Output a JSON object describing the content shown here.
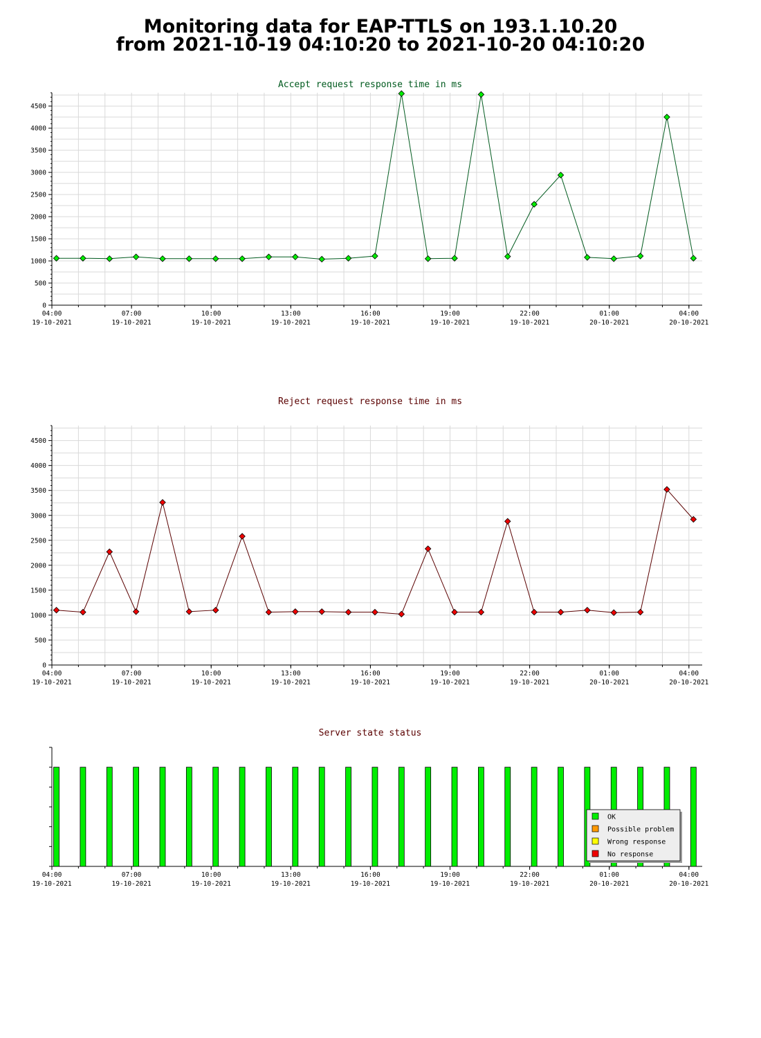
{
  "page": {
    "title_line1": "Monitoring data for EAP-TTLS on 193.1.10.20",
    "title_line2": "from 2021-10-19 04:10:20 to 2021-10-20 04:10:20"
  },
  "chart_data": [
    {
      "type": "line",
      "title": "Accept request response time in ms",
      "title_color": "#005a1e",
      "line_color": "#005a1e",
      "marker_color": "#00ee00",
      "grid": true,
      "ylim": [
        0,
        4800
      ],
      "yticks": [
        0,
        500,
        1000,
        1500,
        2000,
        2500,
        3000,
        3500,
        4000,
        4500
      ],
      "xlim": [
        4.0,
        28.5
      ],
      "xticks": [
        {
          "x": 4,
          "time": "04:00",
          "date": "19-10-2021"
        },
        {
          "x": 7,
          "time": "07:00",
          "date": "19-10-2021"
        },
        {
          "x": 10,
          "time": "10:00",
          "date": "19-10-2021"
        },
        {
          "x": 13,
          "time": "13:00",
          "date": "19-10-2021"
        },
        {
          "x": 16,
          "time": "16:00",
          "date": "19-10-2021"
        },
        {
          "x": 19,
          "time": "19:00",
          "date": "19-10-2021"
        },
        {
          "x": 22,
          "time": "22:00",
          "date": "19-10-2021"
        },
        {
          "x": 25,
          "time": "01:00",
          "date": "20-10-2021"
        },
        {
          "x": 28,
          "time": "04:00",
          "date": "20-10-2021"
        }
      ],
      "series": [
        {
          "x": [
            4.17,
            5.17,
            6.17,
            7.17,
            8.17,
            9.17,
            10.17,
            11.17,
            12.17,
            13.17,
            14.17,
            15.17,
            16.17,
            17.17,
            18.17,
            19.17,
            20.17,
            21.17,
            22.17,
            23.17,
            24.17,
            25.17,
            26.17,
            27.17,
            28.17
          ],
          "values": [
            1060,
            1060,
            1050,
            1090,
            1050,
            1050,
            1050,
            1050,
            1090,
            1090,
            1040,
            1060,
            1110,
            4780,
            1050,
            1060,
            4760,
            1100,
            2280,
            2940,
            1080,
            1050,
            1110,
            4250,
            1060
          ]
        }
      ]
    },
    {
      "type": "line",
      "title": "Reject request response time in ms",
      "title_color": "#5a0000",
      "line_color": "#5a0000",
      "marker_color": "#ee0000",
      "grid": true,
      "ylim": [
        0,
        4800
      ],
      "yticks": [
        0,
        500,
        1000,
        1500,
        2000,
        2500,
        3000,
        3500,
        4000,
        4500
      ],
      "xlim": [
        4.0,
        28.5
      ],
      "xticks": [
        {
          "x": 4,
          "time": "04:00",
          "date": "19-10-2021"
        },
        {
          "x": 7,
          "time": "07:00",
          "date": "19-10-2021"
        },
        {
          "x": 10,
          "time": "10:00",
          "date": "19-10-2021"
        },
        {
          "x": 13,
          "time": "13:00",
          "date": "19-10-2021"
        },
        {
          "x": 16,
          "time": "16:00",
          "date": "19-10-2021"
        },
        {
          "x": 19,
          "time": "19:00",
          "date": "19-10-2021"
        },
        {
          "x": 22,
          "time": "22:00",
          "date": "19-10-2021"
        },
        {
          "x": 25,
          "time": "01:00",
          "date": "20-10-2021"
        },
        {
          "x": 28,
          "time": "04:00",
          "date": "20-10-2021"
        }
      ],
      "series": [
        {
          "x": [
            4.17,
            5.17,
            6.17,
            7.17,
            8.17,
            9.17,
            10.17,
            11.17,
            12.17,
            13.17,
            14.17,
            15.17,
            16.17,
            17.17,
            18.17,
            19.17,
            20.17,
            21.17,
            22.17,
            23.17,
            24.17,
            25.17,
            26.17,
            27.17,
            28.17
          ],
          "values": [
            1100,
            1060,
            2270,
            1070,
            3260,
            1070,
            1100,
            2580,
            1060,
            1070,
            1070,
            1060,
            1060,
            1020,
            2330,
            1060,
            1060,
            2880,
            1060,
            1060,
            1100,
            1050,
            1060,
            3520,
            2920
          ]
        }
      ]
    },
    {
      "type": "bar",
      "title": "Server state status",
      "title_color": "#5a0000",
      "grid": false,
      "xlim": [
        4.0,
        28.5
      ],
      "xticks": [
        {
          "x": 4,
          "time": "04:00",
          "date": "19-10-2021"
        },
        {
          "x": 7,
          "time": "07:00",
          "date": "19-10-2021"
        },
        {
          "x": 10,
          "time": "10:00",
          "date": "19-10-2021"
        },
        {
          "x": 13,
          "time": "13:00",
          "date": "19-10-2021"
        },
        {
          "x": 16,
          "time": "16:00",
          "date": "19-10-2021"
        },
        {
          "x": 19,
          "time": "19:00",
          "date": "19-10-2021"
        },
        {
          "x": 22,
          "time": "22:00",
          "date": "19-10-2021"
        },
        {
          "x": 25,
          "time": "01:00",
          "date": "20-10-2021"
        },
        {
          "x": 28,
          "time": "04:00",
          "date": "20-10-2021"
        }
      ],
      "x": [
        4.17,
        5.17,
        6.17,
        7.17,
        8.17,
        9.17,
        10.17,
        11.17,
        12.17,
        13.17,
        14.17,
        15.17,
        16.17,
        17.17,
        18.17,
        19.17,
        20.17,
        21.17,
        22.17,
        23.17,
        24.17,
        25.17,
        26.17,
        27.17,
        28.17
      ],
      "status": [
        "OK",
        "OK",
        "OK",
        "OK",
        "OK",
        "OK",
        "OK",
        "OK",
        "OK",
        "OK",
        "OK",
        "OK",
        "OK",
        "OK",
        "OK",
        "OK",
        "OK",
        "OK",
        "OK",
        "OK",
        "OK",
        "OK",
        "OK",
        "OK",
        "OK"
      ],
      "legend_position": "bottom-right",
      "legend": [
        {
          "label": "OK",
          "color": "#00ee00"
        },
        {
          "label": "Possible problem",
          "color": "#ff9900"
        },
        {
          "label": "Wrong response",
          "color": "#ffff00"
        },
        {
          "label": "No response",
          "color": "#ee0000"
        }
      ]
    }
  ]
}
